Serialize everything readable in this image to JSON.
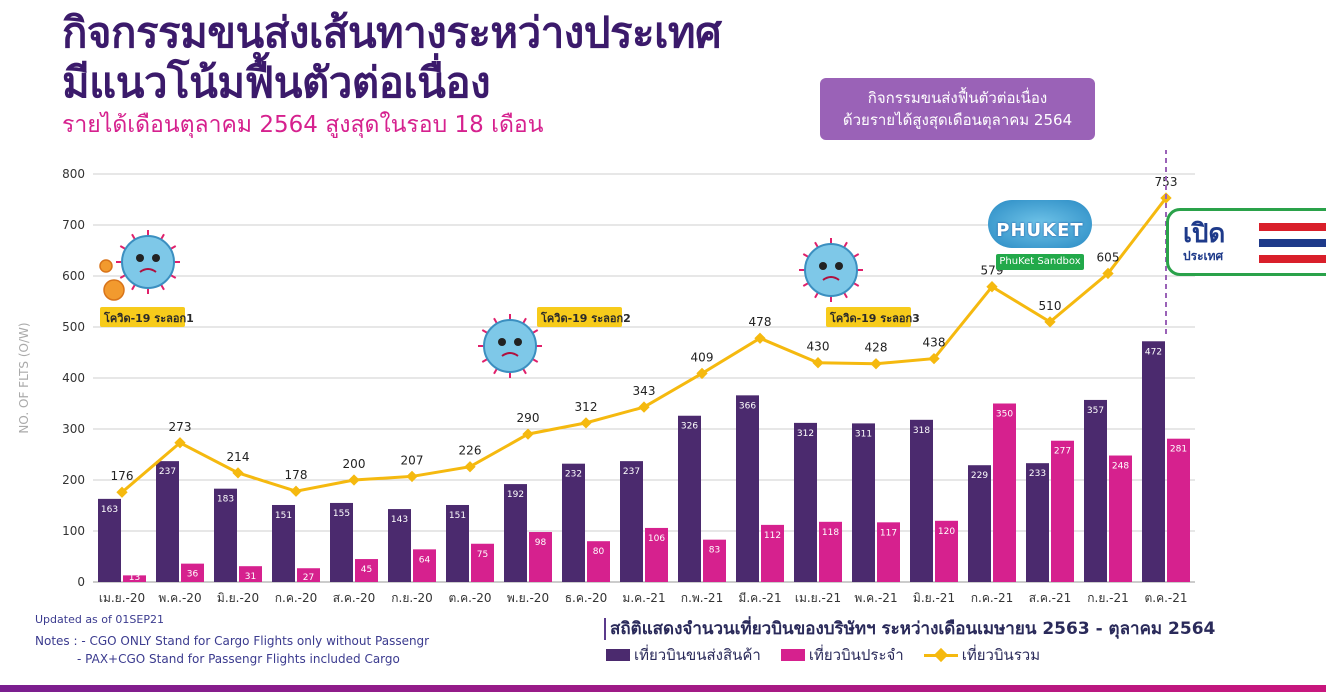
{
  "header": {
    "title_line1": "กิจกรรมขนส่งเส้นทางระหว่างประเทศ",
    "title_line2": "มีแนวโน้มฟื้นตัวต่อเนื่อง",
    "subtitle": "รายได้เดือนตุลาคม 2564 สูงสุดในรอบ 18 เดือน"
  },
  "callout": {
    "line1": "กิจกรรมขนส่งฟื้นตัวต่อเนื่อง",
    "line2": "ด้วยรายได้สูงสุดเดือนตุลาคม 2564"
  },
  "covid_labels": [
    "โควิด-19 ระลอก1",
    "โควิด-19 ระลอก2",
    "โควิด-19 ระลอก3"
  ],
  "badges": {
    "phuket_tag": "PhuKet Sandbox",
    "phuket_pic_text": "PHUKET",
    "open_line1": "เปิด",
    "open_line2": "ประเทศ"
  },
  "colors": {
    "cargo": "#4b2a6e",
    "passenger": "#d6218e",
    "total": "#f5b90f",
    "callout": "#9a62b7"
  },
  "chart_data": {
    "type": "bar",
    "categories": [
      "เม.ย.-20",
      "พ.ค.-20",
      "มิ.ย.-20",
      "ก.ค.-20",
      "ส.ค.-20",
      "ก.ย.-20",
      "ต.ค.-20",
      "พ.ย.-20",
      "ธ.ค.-20",
      "ม.ค.-21",
      "ก.พ.-21",
      "มี.ค.-21",
      "เม.ย.-21",
      "พ.ค.-21",
      "มิ.ย.-21",
      "ก.ค.-21",
      "ส.ค.-21",
      "ก.ย.-21",
      "ต.ค.-21"
    ],
    "series": [
      {
        "name": "เที่ยวบินขนส่งสินค้า",
        "type": "bar",
        "values": [
          163,
          237,
          183,
          151,
          155,
          143,
          151,
          192,
          232,
          237,
          326,
          366,
          312,
          311,
          318,
          229,
          233,
          357,
          472
        ]
      },
      {
        "name": "เที่ยวบินประจำ",
        "type": "bar",
        "values": [
          13,
          36,
          31,
          27,
          45,
          64,
          75,
          98,
          80,
          106,
          83,
          112,
          118,
          117,
          120,
          350,
          277,
          248,
          281
        ]
      },
      {
        "name": "เที่ยวบินรวม",
        "type": "line",
        "values": [
          176,
          273,
          214,
          178,
          200,
          207,
          226,
          290,
          312,
          343,
          409,
          478,
          430,
          428,
          438,
          579,
          510,
          605,
          753
        ]
      }
    ],
    "ylabel": "NO. OF FLTS (O/W)",
    "ylim": [
      0,
      800
    ],
    "yticks": [
      0,
      100,
      200,
      300,
      400,
      500,
      600,
      700,
      800
    ],
    "grid": true,
    "legend_position": "bottom",
    "caption": "สถิติแสดงจำนวนเที่ยวบินของบริษัทฯ ระหว่างเดือนเมษายน 2563 - ตุลาคม 2564"
  },
  "footer": {
    "updated": "Updated as of 01SEP21",
    "notes_line1": "Notes : - CGO ONLY Stand for Cargo Flights only without Passengr",
    "notes_line2": "- PAX+CGO Stand for Passengr Flights included Cargo"
  }
}
